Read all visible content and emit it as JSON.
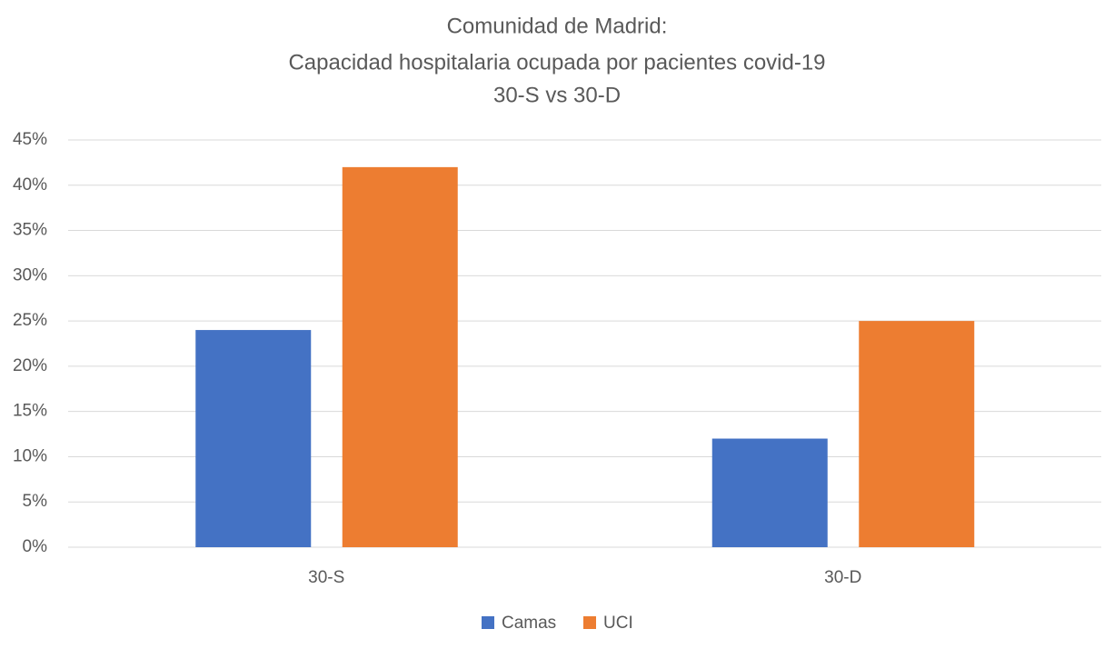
{
  "chart_data": {
    "type": "bar",
    "title": [
      "Comunidad de Madrid:",
      "Capacidad hospitalaria ocupada por pacientes covid-19",
      "30-S vs 30-D"
    ],
    "categories": [
      "30-S",
      "30-D"
    ],
    "series": [
      {
        "name": "Camas",
        "color": "#4472c4",
        "values": [
          24,
          12
        ]
      },
      {
        "name": "UCI",
        "color": "#ed7d31",
        "values": [
          42,
          25
        ]
      }
    ],
    "ylim": [
      0,
      45
    ],
    "yticks": [
      {
        "value": 0,
        "label": "0%"
      },
      {
        "value": 5,
        "label": "5%"
      },
      {
        "value": 10,
        "label": "10%"
      },
      {
        "value": 15,
        "label": "15%"
      },
      {
        "value": 20,
        "label": "20%"
      },
      {
        "value": 25,
        "label": "25%"
      },
      {
        "value": 30,
        "label": "30%"
      },
      {
        "value": 35,
        "label": "35%"
      },
      {
        "value": 40,
        "label": "40%"
      },
      {
        "value": 45,
        "label": "45%"
      }
    ],
    "grid": true,
    "legend": "bottom"
  }
}
